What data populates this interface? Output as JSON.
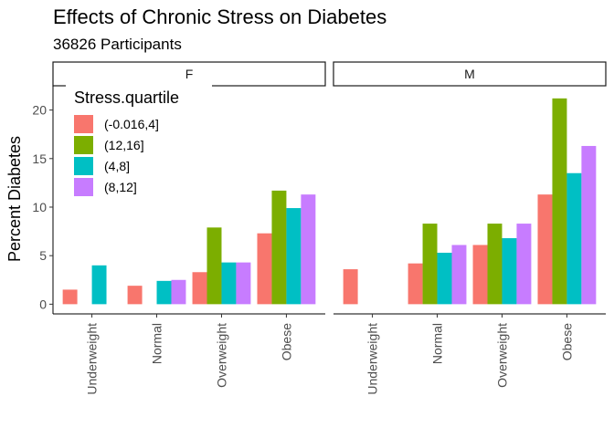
{
  "chart_data": {
    "type": "bar",
    "title": "Effects of Chronic Stress on Diabetes",
    "subtitle": "36826 Participants",
    "ylabel": "Percent Diabetes",
    "xlabel": "",
    "ylim": [
      -1,
      22.5
    ],
    "yticks": [
      0,
      5,
      10,
      15,
      20
    ],
    "categories": [
      "Underweight",
      "Normal",
      "Overweight",
      "Obese"
    ],
    "legend": {
      "title": "Stress.quartile",
      "position": "top-left",
      "entries": [
        "(-0.016,4]",
        "(12,16]",
        "(4,8]",
        "(8,12]"
      ]
    },
    "colors": [
      "#F8766D",
      "#7CAE00",
      "#00BFC4",
      "#C77CFF"
    ],
    "facets": [
      {
        "label": "F",
        "series": [
          {
            "name": "(-0.016,4]",
            "values": [
              1.5,
              1.9,
              3.3,
              7.3
            ]
          },
          {
            "name": "(12,16]",
            "values": [
              null,
              null,
              7.9,
              11.7
            ]
          },
          {
            "name": "(4,8]",
            "values": [
              4.0,
              2.4,
              4.3,
              9.9
            ]
          },
          {
            "name": "(8,12]",
            "values": [
              null,
              2.5,
              4.3,
              11.3
            ]
          }
        ]
      },
      {
        "label": "M",
        "series": [
          {
            "name": "(-0.016,4]",
            "values": [
              3.6,
              4.2,
              6.1,
              11.3
            ]
          },
          {
            "name": "(12,16]",
            "values": [
              null,
              8.3,
              8.3,
              21.2
            ]
          },
          {
            "name": "(4,8]",
            "values": [
              null,
              5.3,
              6.8,
              13.5
            ]
          },
          {
            "name": "(8,12]",
            "values": [
              null,
              6.1,
              8.3,
              16.3
            ]
          }
        ]
      }
    ],
    "grid": false
  }
}
